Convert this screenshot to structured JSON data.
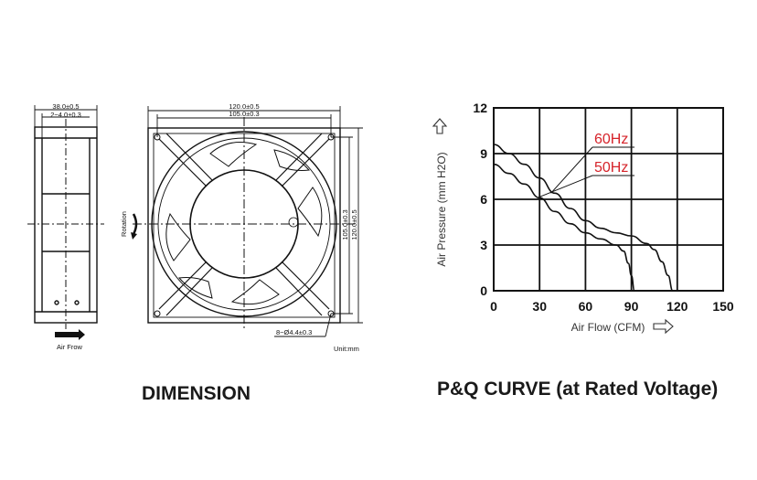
{
  "dimension": {
    "caption": "DIMENSION",
    "side_view": {
      "width_label": "38.0±0.5",
      "flange_label": "2−4.0±0.3",
      "airflow_label": "Air Frow"
    },
    "front_view": {
      "width_outer": "120.0±0.5",
      "width_inner": "105.0±0.3",
      "height_inner": "105.0±0.3",
      "height_outer": "120.0±0.5",
      "holes_label": "8−Ø4.4±0.3",
      "rotation_label": "Rotation",
      "unit_label": "Unit:mm"
    }
  },
  "pq_curve": {
    "caption": "P&Q CURVE (at Rated Voltage)"
  },
  "chart_data": {
    "type": "line",
    "title": "P&Q CURVE (at Rated Voltage)",
    "xlabel": "Air Flow (CFM)",
    "ylabel": "Air Pressure (mm H2O)",
    "xlim": [
      0,
      150
    ],
    "ylim": [
      0,
      12
    ],
    "xticks": [
      "0",
      "30",
      "60",
      "90",
      "120",
      "150"
    ],
    "yticks": [
      "0",
      "3",
      "6",
      "9",
      "12"
    ],
    "grid": true,
    "annotation_color": "#d6232a",
    "series": [
      {
        "name": "60Hz",
        "x": [
          0,
          10,
          20,
          30,
          40,
          50,
          60,
          70,
          80,
          90,
          100,
          105,
          110,
          114,
          117
        ],
        "y": [
          9.6,
          9.0,
          8.3,
          7.4,
          6.4,
          5.4,
          4.6,
          4.1,
          3.8,
          3.6,
          3.1,
          2.7,
          1.9,
          1.0,
          0
        ]
      },
      {
        "name": "50Hz",
        "x": [
          0,
          10,
          20,
          30,
          40,
          50,
          60,
          70,
          80,
          85,
          88,
          90,
          92
        ],
        "y": [
          8.3,
          7.7,
          7.0,
          6.1,
          5.2,
          4.4,
          3.8,
          3.4,
          3.0,
          2.6,
          1.8,
          1.0,
          0
        ]
      }
    ]
  }
}
